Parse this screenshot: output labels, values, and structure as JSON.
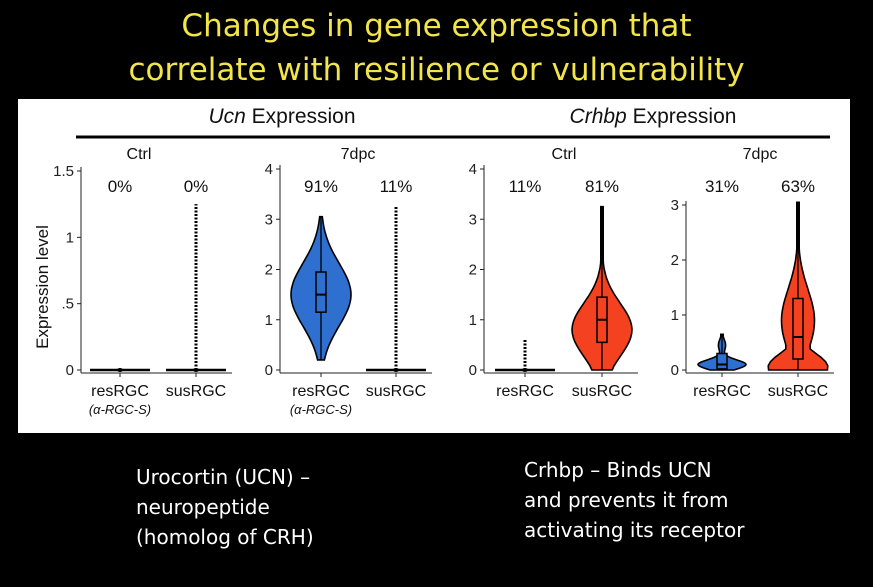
{
  "title": {
    "line1": "Changes in gene expression that",
    "line2": "correlate with resilience or vulnerability"
  },
  "figure": {
    "ylabel": "Expression level",
    "colors": {
      "resilient": "#2f6fd0",
      "susceptible": "#f4411f"
    },
    "groups": [
      {
        "gene": "Ucn",
        "suffix": " Expression",
        "panels": [
          {
            "condition": "Ctrl",
            "ylim": [
              0,
              1.5
            ],
            "yticks": [
              "0",
              ".5",
              "1",
              "1.5"
            ],
            "categories": [
              "resRGC",
              "susRGC"
            ],
            "sublabel": "(α-RGC-S)",
            "percent_expressing": [
              "0%",
              "0%"
            ],
            "max_expression": [
              0.0,
              1.25
            ]
          },
          {
            "condition": "7dpc",
            "ylim": [
              0,
              4
            ],
            "yticks": [
              "0",
              "1",
              "2",
              "3",
              "4"
            ],
            "categories": [
              "resRGC",
              "susRGC"
            ],
            "sublabel": "(α-RGC-S)",
            "percent_expressing": [
              "91%",
              "11%"
            ],
            "max_expression": [
              3.05,
              3.25
            ],
            "violin_resRGC": {
              "median": 1.5,
              "q1": 1.15,
              "q3": 1.95,
              "min": 0.2,
              "max": 3.05
            }
          }
        ]
      },
      {
        "gene": "Crhbp",
        "suffix": " Expression",
        "panels": [
          {
            "condition": "Ctrl",
            "ylim": [
              0,
              4
            ],
            "yticks": [
              "0",
              "1",
              "2",
              "3",
              "4"
            ],
            "categories": [
              "resRGC",
              "susRGC"
            ],
            "percent_expressing": [
              "11%",
              "81%"
            ],
            "max_expression": [
              0.6,
              3.25
            ],
            "violin_susRGC": {
              "median": 1.0,
              "q1": 0.55,
              "q3": 1.45,
              "min": 0.0,
              "max": 3.25
            }
          },
          {
            "condition": "7dpc",
            "ylim": [
              0,
              3.2
            ],
            "yticks": [
              "0",
              "1",
              "2",
              "3"
            ],
            "categories": [
              "resRGC",
              "susRGC"
            ],
            "percent_expressing": [
              "31%",
              "63%"
            ],
            "max_expression": [
              0.65,
              3.05
            ],
            "violin_resRGC": {
              "median": 0.1,
              "q1": 0.02,
              "q3": 0.3,
              "min": 0.0,
              "max": 0.65
            },
            "violin_susRGC": {
              "median": 0.6,
              "q1": 0.2,
              "q3": 1.3,
              "min": 0.0,
              "max": 3.05
            }
          }
        ]
      }
    ]
  },
  "chart_data": [
    {
      "type": "violin",
      "title": "Ucn Expression — Ctrl",
      "ylabel": "Expression level",
      "categories": [
        "resRGC",
        "susRGC"
      ],
      "percent_expressing": [
        0,
        0
      ],
      "ylim": [
        0,
        1.5
      ],
      "max_expression": [
        0.0,
        1.25
      ]
    },
    {
      "type": "violin",
      "title": "Ucn Expression — 7dpc",
      "categories": [
        "resRGC",
        "susRGC"
      ],
      "percent_expressing": [
        91,
        11
      ],
      "ylim": [
        0,
        4
      ],
      "median": [
        1.5,
        0.0
      ],
      "max_expression": [
        3.05,
        3.25
      ]
    },
    {
      "type": "violin",
      "title": "Crhbp Expression — Ctrl",
      "categories": [
        "resRGC",
        "susRGC"
      ],
      "percent_expressing": [
        11,
        81
      ],
      "ylim": [
        0,
        4
      ],
      "median": [
        0.0,
        1.0
      ],
      "max_expression": [
        0.6,
        3.25
      ]
    },
    {
      "type": "violin",
      "title": "Crhbp Expression — 7dpc",
      "categories": [
        "resRGC",
        "susRGC"
      ],
      "percent_expressing": [
        31,
        63
      ],
      "ylim": [
        0,
        3.2
      ],
      "median": [
        0.1,
        0.6
      ],
      "max_expression": [
        0.65,
        3.05
      ]
    }
  ],
  "captions": {
    "left": [
      "Urocortin (UCN) –",
      "neuropeptide",
      "(homolog of CRH)"
    ],
    "right": [
      "Crhbp – Binds UCN",
      "and prevents it from",
      "activating its receptor"
    ]
  }
}
